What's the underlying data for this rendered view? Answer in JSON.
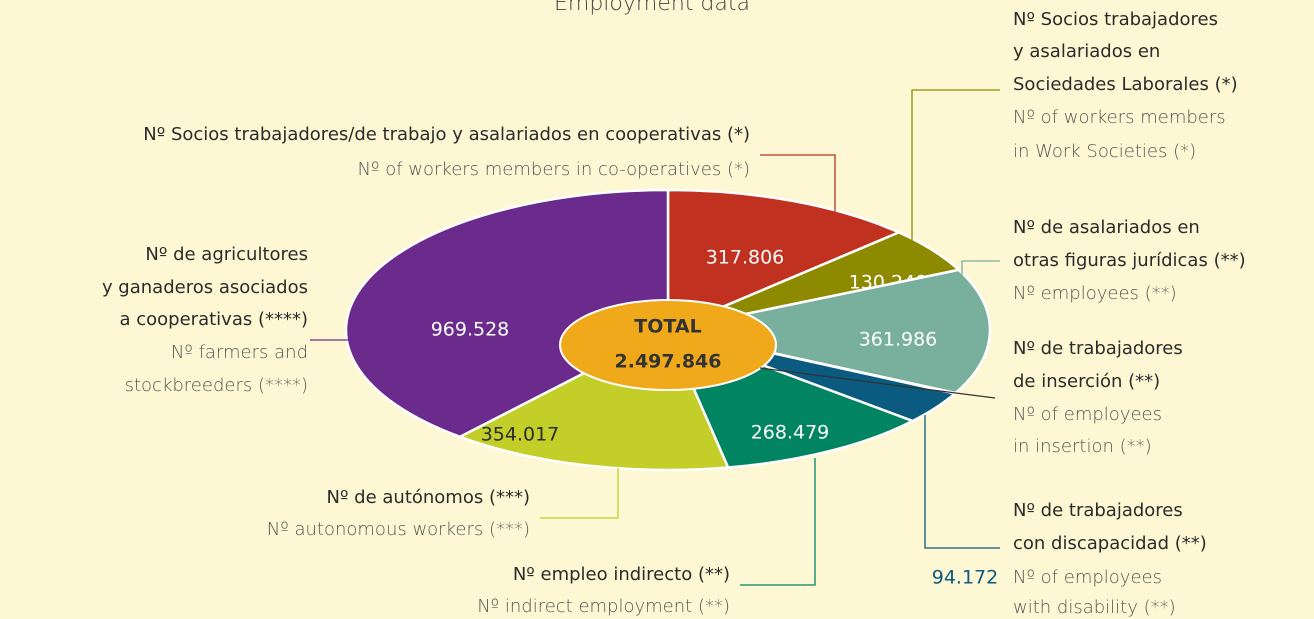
{
  "chart_data": {
    "type": "pie",
    "title": "Employment data",
    "categories": [
      {
        "es": [
          "Nº Socios trabajadores/de trabajo y asalariados en cooperativas (*)"
        ],
        "en": [
          "Nº of workers members in co-operatives (*)"
        ]
      },
      {
        "es": [
          "Nº Socios trabajadores",
          "y asalariados en",
          "Sociedades Laborales (*)"
        ],
        "en": [
          "Nº of workers members",
          "in Work Societies (*)"
        ]
      },
      {
        "es": [
          "Nº de asalariados en",
          "otras figuras jurídicas (**)"
        ],
        "en": [
          "Nº employees (**)"
        ]
      },
      {
        "es": [
          "Nº de trabajadores",
          "de inserción (**)"
        ],
        "en": [
          "Nº of employees",
          "in insertion (**)"
        ]
      },
      {
        "es": [
          "Nº de trabajadores",
          "con discapacidad (**)"
        ],
        "en": [
          "Nº of employees",
          "with disability (**)"
        ]
      },
      {
        "es": [
          "Nº empleo indirecto (**)"
        ],
        "en": [
          "Nº indirect employment (**)"
        ]
      },
      {
        "es": [
          "Nº de autónomos (***)"
        ],
        "en": [
          "Nº autonomous workers (***)"
        ]
      },
      {
        "es": [
          "Nº de agricultores",
          "y ganaderos asociados",
          "a cooperativas (****)"
        ],
        "en": [
          "Nº farmers and",
          "stockbreeders (****)"
        ]
      }
    ],
    "values": [
      317806,
      130240,
      361986,
      1618,
      94172,
      268479,
      354017,
      969528
    ],
    "value_labels": [
      "317.806",
      "130.240",
      "361.986",
      null,
      "94.172",
      "268.479",
      "354.017",
      "969.528"
    ],
    "colors": [
      "#c1311f",
      "#8e8a00",
      "#79b09d",
      "#1c2f45",
      "#0b5a80",
      "#008462",
      "#c3cf28",
      "#6b2b8d"
    ],
    "total": {
      "label": "TOTAL",
      "value": 2497846,
      "value_label": "2.497.846"
    }
  }
}
